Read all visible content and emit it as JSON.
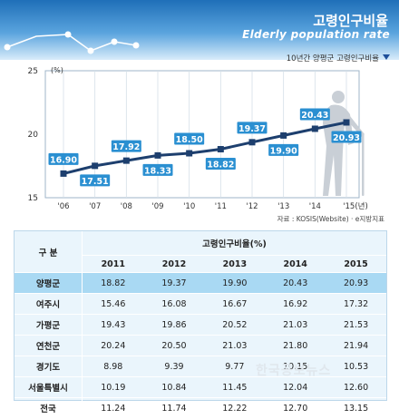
{
  "header": {
    "title": "고령인구비율",
    "subtitle": "Elderly population rate",
    "color": "#1f6fb8"
  },
  "chart_caption": "10년간 양평군 고령인구비율",
  "chart_data": {
    "type": "line",
    "x": [
      "'06",
      "'07",
      "'08",
      "'09",
      "'10",
      "'11",
      "'12",
      "'13",
      "'14",
      "'15(년)"
    ],
    "series": [
      {
        "values": [
          16.9,
          17.51,
          17.92,
          18.33,
          18.5,
          18.82,
          19.37,
          19.9,
          20.43,
          20.93
        ]
      }
    ],
    "data_labels": [
      "16.90",
      "17.51",
      "17.92",
      "18.33",
      "18.50",
      "18.82",
      "19.37",
      "19.90",
      "20.43",
      "20.93"
    ],
    "y_unit": "(%)",
    "y_ticks": [
      "15",
      "20",
      "25"
    ],
    "ylim": [
      15,
      25
    ],
    "grid": true,
    "line_color": "#1d3f6e",
    "label_color": "#2a8fd1"
  },
  "source": "자료 : KOSIS(Website) · e지방지표",
  "table": {
    "corner_label": "구  분",
    "group_header": "고령인구비율(%)",
    "years": [
      "2011",
      "2012",
      "2013",
      "2014",
      "2015"
    ],
    "rows": [
      {
        "region": "양평군",
        "values": [
          "18.82",
          "19.37",
          "19.90",
          "20.43",
          "20.93"
        ],
        "highlight": true
      },
      {
        "region": "여주시",
        "values": [
          "15.46",
          "16.08",
          "16.67",
          "16.92",
          "17.32"
        ],
        "highlight": false
      },
      {
        "region": "가평군",
        "values": [
          "19.43",
          "19.86",
          "20.52",
          "21.03",
          "21.53"
        ],
        "highlight": false
      },
      {
        "region": "연천군",
        "values": [
          "20.24",
          "20.50",
          "21.03",
          "21.80",
          "21.94"
        ],
        "highlight": false
      },
      {
        "region": "경기도",
        "values": [
          "8.98",
          "9.39",
          "9.77",
          "10.15",
          "10.53"
        ],
        "highlight": false
      },
      {
        "region": "서울특별시",
        "values": [
          "10.19",
          "10.84",
          "11.45",
          "12.04",
          "12.60"
        ],
        "highlight": false
      },
      {
        "region": "전국",
        "values": [
          "11.24",
          "11.74",
          "12.22",
          "12.70",
          "13.15"
        ],
        "highlight": false
      }
    ],
    "highlight_color": "#a9d9f3"
  },
  "watermark": "한국공보뉴스"
}
